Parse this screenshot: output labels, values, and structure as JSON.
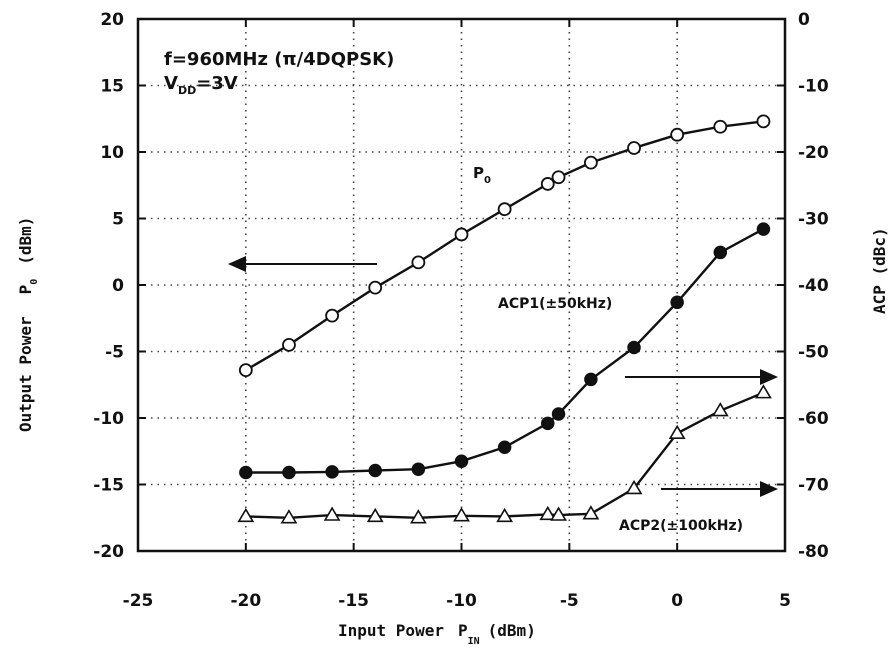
{
  "chart_data": {
    "type": "line",
    "x_axis": {
      "label_main": "Input Power",
      "label_symbol": "P",
      "label_subscript": "IN",
      "label_unit": "(dBm)",
      "range": [
        -25,
        5
      ],
      "ticks": [
        -25,
        -20,
        -15,
        -10,
        -5,
        0,
        5
      ]
    },
    "y_axis_left": {
      "label_main": "Output Power",
      "label_symbol": "P",
      "label_subscript": "0",
      "label_unit": "(dBm)",
      "range": [
        -20,
        20
      ],
      "ticks": [
        -20,
        -15,
        -10,
        -5,
        0,
        5,
        10,
        15,
        20
      ]
    },
    "y_axis_right": {
      "label": "ACP (dBc)",
      "range": [
        -80,
        0
      ],
      "ticks": [
        -80,
        -70,
        -60,
        -50,
        -40,
        -30,
        -20,
        -10,
        0
      ]
    },
    "grid": "dotted",
    "annotations": {
      "condition_line1": "f=960MHz (π/4DQPSK)",
      "vdd_symbol": "V",
      "vdd_subscript": "DD",
      "vdd_value": "=3V"
    },
    "series": [
      {
        "name": "P0",
        "label_symbol": "P",
        "label_subscript": "0",
        "axis": "left",
        "marker": "open-circle",
        "x": [
          -20,
          -18,
          -16,
          -14,
          -12,
          -10,
          -8,
          -6,
          -5.5,
          -4,
          -2,
          0,
          2,
          4
        ],
        "y": [
          -6.4,
          -4.5,
          -2.3,
          -0.2,
          1.7,
          3.8,
          5.7,
          7.6,
          8.1,
          9.2,
          10.3,
          11.3,
          11.9,
          12.3
        ]
      },
      {
        "name": "ACP1(±50kHz)",
        "axis": "right",
        "marker": "filled-circle",
        "x": [
          -20,
          -18,
          -16,
          -14,
          -12,
          -10,
          -8,
          -6,
          -5.5,
          -4,
          -2,
          0,
          2,
          4
        ],
        "y": [
          -68.2,
          -68.2,
          -68.1,
          -67.9,
          -67.7,
          -66.5,
          -64.4,
          -60.8,
          -59.4,
          -54.2,
          -49.4,
          -42.6,
          -35.1,
          -31.6
        ]
      },
      {
        "name": "ACP2(±100kHz)",
        "axis": "right",
        "marker": "open-triangle",
        "x": [
          -20,
          -18,
          -16,
          -14,
          -12,
          -10,
          -8,
          -6,
          -5.5,
          -4,
          -2,
          0,
          2,
          4
        ],
        "y": [
          -74.8,
          -75.0,
          -74.6,
          -74.8,
          -75.0,
          -74.7,
          -74.8,
          -74.5,
          -74.6,
          -74.4,
          -70.6,
          -62.3,
          -58.9,
          -56.2
        ]
      }
    ]
  }
}
